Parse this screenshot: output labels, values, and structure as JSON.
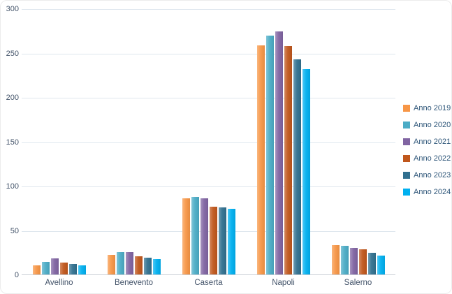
{
  "chart_data": {
    "type": "bar",
    "title": "",
    "xlabel": "",
    "ylabel": "",
    "categories": [
      "Avellino",
      "Benevento",
      "Caserta",
      "Napoli",
      "Salerno"
    ],
    "series": [
      {
        "name": "Anno 2019",
        "color": "#F79646",
        "values": [
          11,
          23,
          87,
          259,
          34
        ]
      },
      {
        "name": "Anno 2020",
        "color": "#4BACC6",
        "values": [
          15,
          26,
          88,
          270,
          33
        ]
      },
      {
        "name": "Anno 2021",
        "color": "#8064A2",
        "values": [
          19,
          26,
          87,
          275,
          31
        ]
      },
      {
        "name": "Anno 2022",
        "color": "#C0571C",
        "values": [
          14,
          21,
          77,
          258,
          29
        ]
      },
      {
        "name": "Anno 2023",
        "color": "#31708F",
        "values": [
          13,
          20,
          76,
          243,
          25
        ]
      },
      {
        "name": "Anno 2024",
        "color": "#00B0F0",
        "values": [
          11,
          18,
          75,
          232,
          22
        ]
      }
    ],
    "ylim": [
      0,
      300
    ],
    "yticks": [
      0,
      50,
      100,
      150,
      200,
      250,
      300
    ],
    "grid": true,
    "legend_position": "right"
  },
  "style_colors": {
    "gridline": "#dfe7ee",
    "axis_line": "#c9cfd6",
    "tick_text": "#44546a",
    "legend_text": "#2e5679"
  }
}
